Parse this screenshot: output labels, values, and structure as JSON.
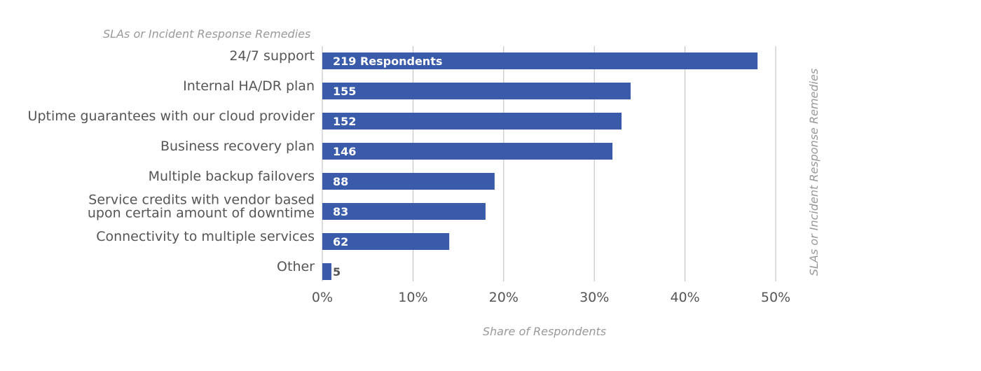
{
  "chart_data": {
    "type": "bar",
    "orientation": "horizontal",
    "title": "SLAs or Incident Response Remedies",
    "ylabel": "SLAs or Incident Response Remedies",
    "xlabel": "Share of Respondents",
    "categories": [
      [
        "24/7 support"
      ],
      [
        "Internal HA/DR plan"
      ],
      [
        "Uptime guarantees with our cloud provider"
      ],
      [
        "Business recovery plan"
      ],
      [
        "Multiple backup failovers"
      ],
      [
        "Service credits with vendor based",
        "upon certain amount of downtime"
      ],
      [
        "Connectivity to multiple services"
      ],
      [
        "Other"
      ]
    ],
    "values": [
      48,
      34,
      33,
      32,
      19,
      18,
      14,
      1
    ],
    "value_labels": [
      "219 Respondents",
      "155",
      "152",
      "146",
      "88",
      "83",
      "62",
      "5"
    ],
    "xlim": [
      0,
      50
    ],
    "xticks": [
      0,
      10,
      20,
      30,
      40,
      50
    ],
    "xtick_labels": [
      "0%",
      "10%",
      "20%",
      "30%",
      "40%",
      "50%"
    ],
    "grid": true,
    "legend": "none",
    "colors": {
      "bar": "#3a5ba9",
      "gridline": "#bbbbbb",
      "label_inside": "#ffffff",
      "label_outside": "#555555"
    }
  }
}
